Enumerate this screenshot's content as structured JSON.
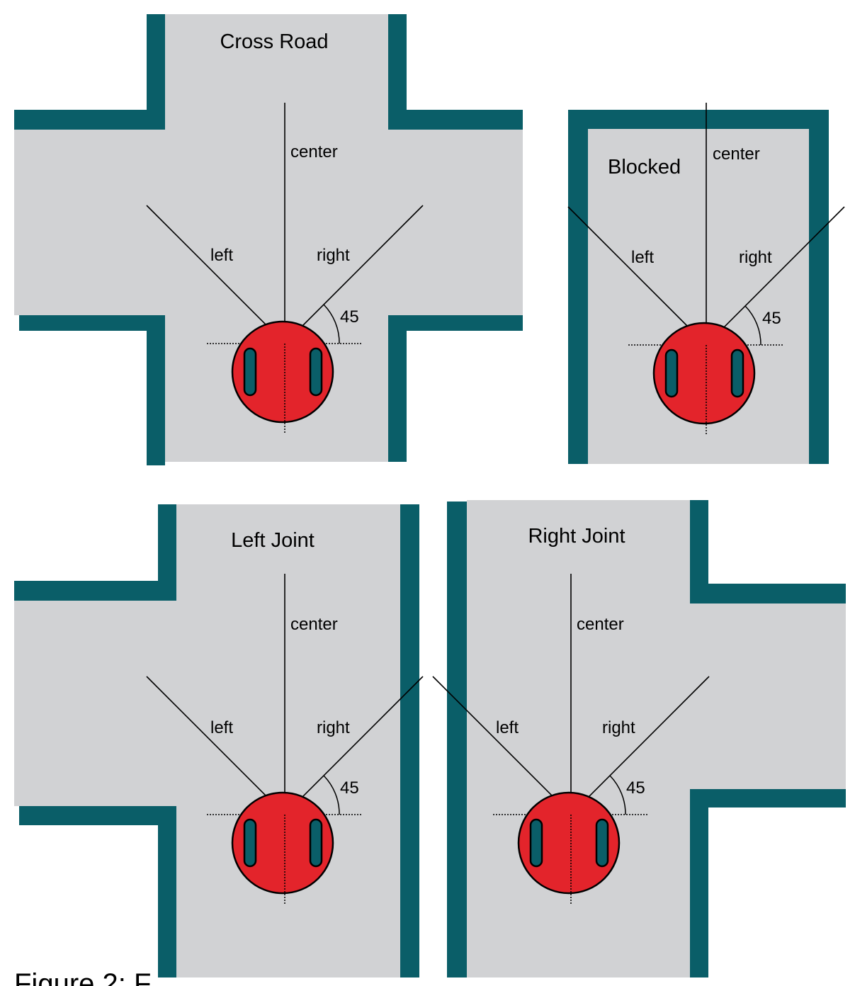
{
  "panels": {
    "cross_road": {
      "title": "Cross Road",
      "center": "center",
      "left": "left",
      "right": "right",
      "angle": "45"
    },
    "blocked": {
      "title": "Blocked",
      "center": "center",
      "left": "left",
      "right": "right",
      "angle": "45"
    },
    "left_joint": {
      "title": "Left Joint",
      "center": "center",
      "left": "left",
      "right": "right",
      "angle": "45"
    },
    "right_joint": {
      "title": "Right Joint",
      "center": "center",
      "left": "left",
      "right": "right",
      "angle": "45"
    }
  },
  "colors": {
    "road": "#d1d2d4",
    "wall": "#0a5e68",
    "robot": "#e3242b"
  },
  "caption": "Figure 2: F"
}
